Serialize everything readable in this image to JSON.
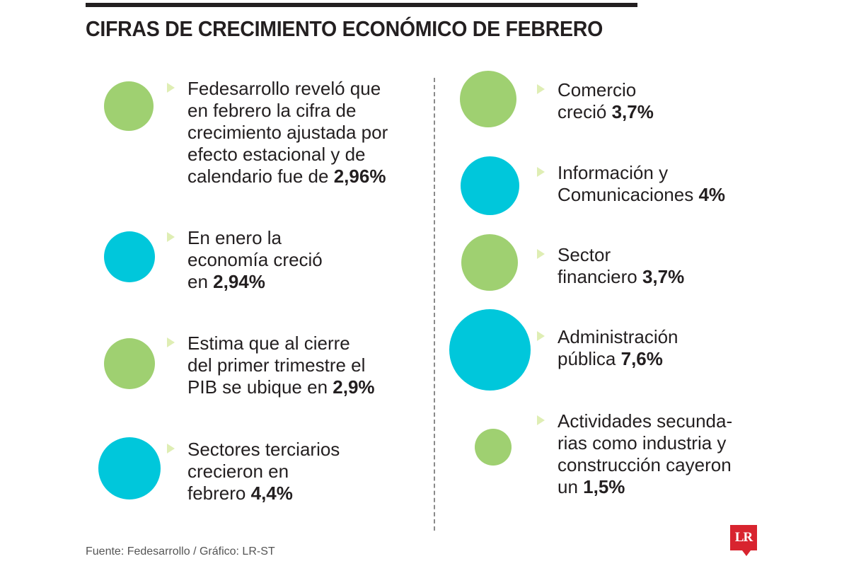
{
  "title": "CIFRAS DE CRECIMIENTO ECONÓMICO DE FEBRERO",
  "colors": {
    "green": "#9fd071",
    "cyan": "#00c7db",
    "logo_red": "#d8242f",
    "text": "#231f20"
  },
  "left_items": [
    {
      "circle_color": "green",
      "lines": [
        "Fedesarrollo reveló que",
        "en febrero la cifra de",
        "crecimiento ajustada por",
        "efecto estacional y de"
      ],
      "last_text": "calendario fue de ",
      "value": "2,96%"
    },
    {
      "circle_color": "cyan",
      "lines": [
        "En enero la",
        "economía creció"
      ],
      "last_text": "en ",
      "value": "2,94%"
    },
    {
      "circle_color": "green",
      "lines": [
        "Estima que al cierre",
        "del primer trimestre el"
      ],
      "last_text": "PIB se ubique en ",
      "value": "2,9%"
    },
    {
      "circle_color": "cyan",
      "lines": [
        "Sectores terciarios",
        "crecieron en"
      ],
      "last_text": "febrero ",
      "value": "4,4%"
    }
  ],
  "right_items": [
    {
      "circle_color": "green",
      "lines": [
        "Comercio"
      ],
      "last_text": "creció ",
      "value": "3,7%"
    },
    {
      "circle_color": "cyan",
      "lines": [
        "Información y"
      ],
      "last_text": "Comunicaciones ",
      "value": "4%"
    },
    {
      "circle_color": "green",
      "lines": [
        "Sector"
      ],
      "last_text": "financiero ",
      "value": "3,7%"
    },
    {
      "circle_color": "cyan",
      "lines": [
        "Administración"
      ],
      "last_text": "pública ",
      "value": "7,6%"
    },
    {
      "circle_color": "green",
      "lines": [
        "Actividades secunda-",
        "rias como industria y",
        "construcción cayeron"
      ],
      "last_text": "un ",
      "value": "1,5%"
    }
  ],
  "source": "Fuente: Fedesarrollo / Gráfico: LR-ST",
  "logo": "LR"
}
